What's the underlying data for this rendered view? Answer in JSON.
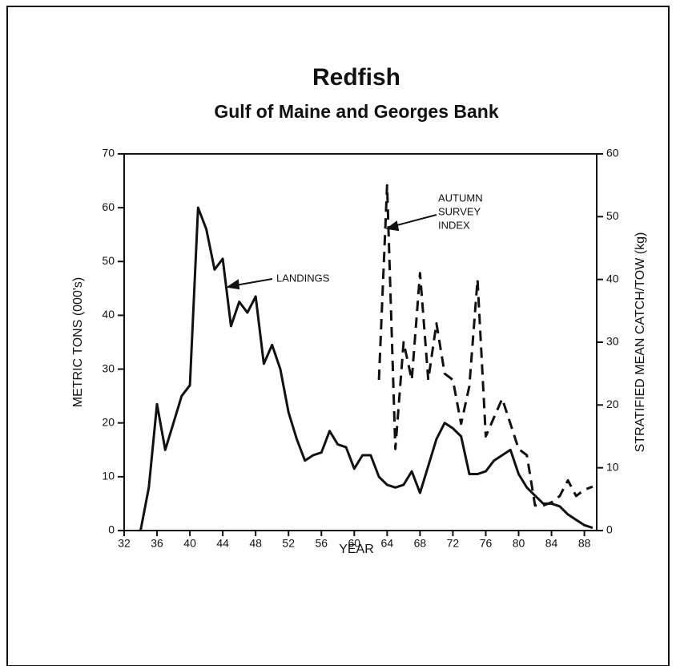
{
  "chart_data": {
    "type": "line",
    "title": "Redfish",
    "subtitle": "Gulf of Maine and Georges Bank",
    "x_label": "YEAR",
    "y_label": "METRIC TONS (000's)",
    "y2_label": "STRATIFIED MEAN CATCH/TOW (kg)",
    "annotations": [
      {
        "lines": [
          "LANDINGS"
        ]
      },
      {
        "lines": [
          "AUTUMN",
          "SURVEY",
          "INDEX"
        ]
      }
    ],
    "x": [
      34,
      35,
      36,
      37,
      38,
      39,
      40,
      41,
      42,
      43,
      44,
      45,
      46,
      47,
      48,
      49,
      50,
      51,
      52,
      53,
      54,
      55,
      56,
      57,
      58,
      59,
      60,
      61,
      62,
      63,
      64,
      65,
      66,
      67,
      68,
      69,
      70,
      71,
      72,
      73,
      74,
      75,
      76,
      77,
      78,
      79,
      80,
      81,
      82,
      83,
      84,
      85,
      86,
      87,
      88,
      89
    ],
    "series": [
      {
        "name": "LANDINGS",
        "color": "#111111",
        "dashed": false,
        "values": [
          0,
          8,
          23.5,
          15,
          20,
          25,
          27,
          60,
          56,
          48.5,
          50.5,
          38,
          42.5,
          40.5,
          43.5,
          31,
          34.5,
          30,
          22,
          17,
          13,
          14,
          14.5,
          18.5,
          16,
          15.5,
          11.5,
          14,
          14,
          10,
          8.5,
          8,
          8.5,
          11,
          7,
          12,
          17,
          20,
          19,
          17.5,
          10.5,
          10.5,
          11,
          13,
          14,
          15,
          10.5,
          8,
          6.5,
          5,
          5,
          4.5,
          3,
          2,
          1,
          0.5
        ]
      },
      {
        "name": "AUTUMN SURVEY INDEX",
        "color": "#111111",
        "dashed": true,
        "axis": "y2",
        "values": [
          null,
          null,
          null,
          null,
          null,
          null,
          null,
          null,
          null,
          null,
          null,
          null,
          null,
          null,
          null,
          null,
          null,
          null,
          null,
          null,
          null,
          null,
          null,
          null,
          null,
          null,
          null,
          null,
          null,
          24,
          55,
          13,
          30,
          24,
          41,
          24,
          33,
          25,
          24,
          17,
          23,
          40,
          15,
          18,
          21,
          17,
          13,
          12,
          4,
          4,
          4.5,
          5.5,
          8,
          5.5,
          6.5,
          7
        ]
      }
    ],
    "xlim": [
      32,
      89.5
    ],
    "xticks": [
      32,
      36,
      40,
      44,
      48,
      52,
      56,
      60,
      64,
      68,
      72,
      76,
      80,
      84,
      88
    ],
    "ylim": [
      0,
      70
    ],
    "yticks": [
      0,
      10,
      20,
      30,
      40,
      50,
      60,
      70
    ],
    "y2lim": [
      0,
      60
    ],
    "y2ticks": [
      0,
      10,
      20,
      30,
      40,
      50,
      60
    ],
    "grid": false
  }
}
